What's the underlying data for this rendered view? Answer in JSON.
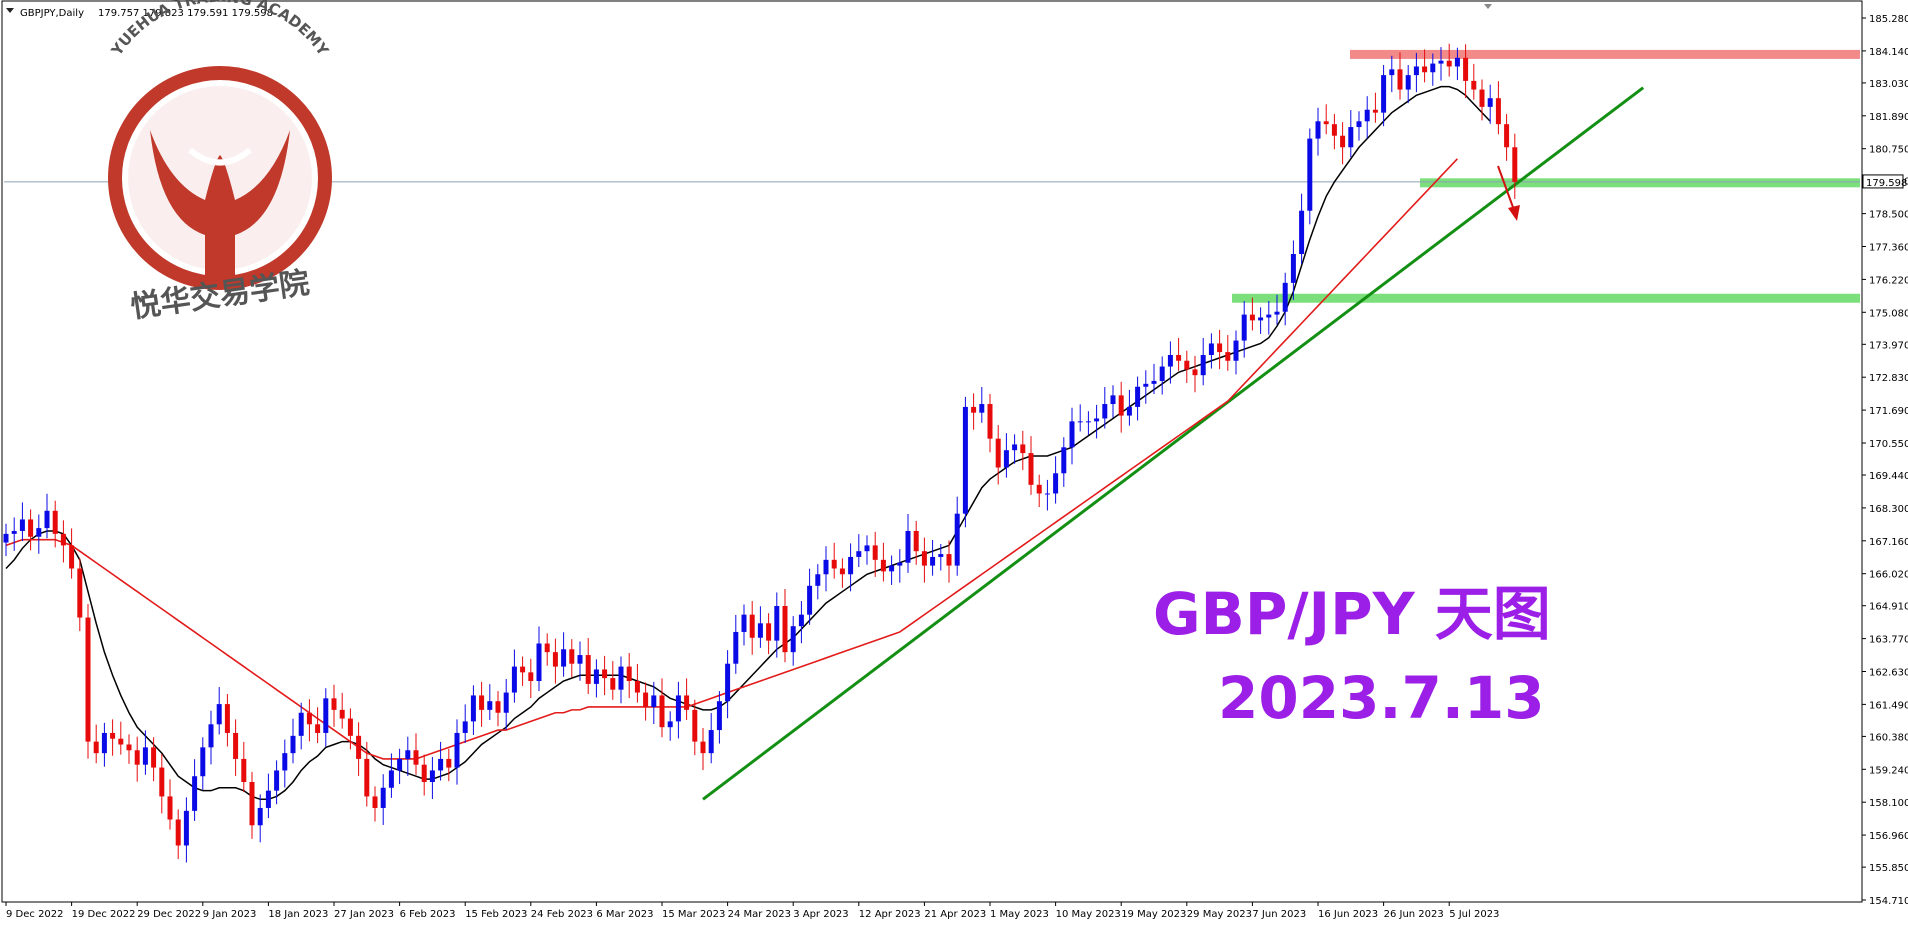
{
  "header": {
    "symbol": "GBPJPY,Daily",
    "ohlc": "179.757 179.823 179.591 179.598"
  },
  "logo": {
    "arc_text": "YUEHUA TRADING ACADEMY",
    "cn_text": "悦华交易学院",
    "ring_color": "#c0392b"
  },
  "annotation": {
    "title": "GBP/JPY 天图",
    "date": "2023.7.13",
    "color": "#9b1fe6"
  },
  "colors": {
    "bull": "#0a0ae6",
    "bear": "#e60a0a",
    "ma_fast": "#000000",
    "ma_slow": "#e31b1b",
    "trendline": "#139013",
    "support": "#7be07b",
    "resistance": "#f28a8a",
    "arrow": "#d31111",
    "price_line": "#8da0b8"
  },
  "chart_data": {
    "type": "candlestick",
    "price_axis": {
      "min": 154.71,
      "max": 185.28,
      "ticks": [
        "185.280",
        "184.140",
        "183.030",
        "181.890",
        "180.750",
        "179.640",
        "178.500",
        "177.360",
        "176.220",
        "175.080",
        "173.970",
        "172.830",
        "171.690",
        "170.550",
        "169.440",
        "168.300",
        "167.160",
        "166.020",
        "164.910",
        "163.770",
        "162.630",
        "161.490",
        "160.380",
        "159.240",
        "158.100",
        "156.960",
        "155.850",
        "154.710"
      ],
      "current_price": "179.598"
    },
    "date_axis": {
      "labels": [
        "9 Dec 2022",
        "19 Dec 2022",
        "29 Dec 2022",
        "9 Jan 2023",
        "18 Jan 2023",
        "27 Jan 2023",
        "6 Feb 2023",
        "15 Feb 2023",
        "24 Feb 2023",
        "6 Mar 2023",
        "15 Mar 2023",
        "24 Mar 2023",
        "3 Apr 2023",
        "12 Apr 2023",
        "21 Apr 2023",
        "1 May 2023",
        "10 May 2023",
        "19 May 2023",
        "29 May 2023",
        "7 Jun 2023",
        "16 Jun 2023",
        "26 Jun 2023",
        "5 Jul 2023"
      ],
      "label_bar_index": [
        0,
        8,
        16,
        24,
        32,
        40,
        48,
        56,
        64,
        72,
        80,
        88,
        96,
        104,
        112,
        120,
        128,
        136,
        144,
        152,
        160,
        168,
        176
      ]
    },
    "series": [
      {
        "name": "",
        "kind": "candles",
        "closes": [
          167.4,
          167.5,
          167.9,
          167.3,
          167.6,
          168.2,
          167.4,
          167.0,
          166.2,
          164.5,
          160.2,
          159.8,
          160.5,
          160.3,
          160.1,
          159.9,
          159.4,
          160.0,
          159.3,
          158.3,
          157.5,
          156.6,
          157.8,
          159.0,
          160.0,
          160.8,
          161.5,
          160.5,
          159.6,
          158.8,
          157.3,
          157.9,
          158.5,
          159.2,
          159.8,
          160.4,
          161.2,
          160.8,
          160.5,
          161.7,
          161.3,
          161.0,
          160.4,
          159.6,
          158.3,
          157.9,
          158.6,
          159.2,
          159.6,
          159.9,
          159.4,
          158.8,
          159.2,
          159.6,
          159.3,
          160.5,
          160.9,
          161.8,
          161.3,
          161.6,
          161.2,
          161.9,
          162.8,
          162.6,
          162.3,
          163.6,
          163.3,
          162.8,
          163.4,
          162.9,
          163.2,
          162.2,
          162.7,
          162.4,
          162.0,
          162.8,
          162.3,
          161.9,
          161.4,
          161.8,
          160.7,
          160.9,
          161.8,
          161.3,
          160.2,
          159.8,
          160.6,
          161.6,
          162.9,
          164.0,
          164.6,
          163.8,
          164.3,
          163.7,
          164.9,
          163.3,
          164.2,
          164.6,
          165.6,
          166.0,
          166.5,
          166.2,
          166.0,
          166.6,
          166.8,
          167.0,
          166.5,
          166.1,
          166.3,
          166.4,
          167.5,
          166.8,
          166.3,
          166.6,
          166.7,
          166.3,
          168.1,
          171.8,
          171.6,
          171.9,
          170.7,
          169.7,
          170.3,
          170.5,
          170.2,
          169.1,
          168.8,
          168.8,
          169.5,
          170.4,
          171.3,
          171.3,
          171.3,
          171.4,
          171.9,
          172.2,
          171.5,
          171.8,
          172.5,
          172.6,
          172.7,
          173.2,
          173.6,
          173.4,
          173.1,
          172.9,
          173.6,
          174.0,
          173.7,
          173.4,
          174.1,
          175.0,
          174.8,
          174.9,
          175.0,
          175.1,
          176.1,
          177.1,
          178.6,
          181.1,
          181.7,
          181.6,
          181.2,
          180.8,
          181.5,
          181.7,
          182.1,
          182.0,
          183.3,
          183.5,
          182.8,
          183.3,
          183.6,
          183.4,
          183.7,
          183.8,
          183.6,
          183.9,
          183.1,
          182.8,
          182.2,
          182.5,
          181.6,
          180.8,
          179.6
        ]
      },
      {
        "name": "",
        "kind": "ma_fast",
        "values": [
          166.2,
          166.5,
          166.9,
          167.2,
          167.4,
          167.5,
          167.5,
          167.4,
          167.0,
          166.5,
          165.4,
          164.3,
          163.3,
          162.5,
          161.8,
          161.2,
          160.7,
          160.4,
          160.1,
          159.8,
          159.4,
          159.0,
          158.8,
          158.6,
          158.5,
          158.5,
          158.6,
          158.6,
          158.6,
          158.5,
          158.3,
          158.2,
          158.2,
          158.3,
          158.5,
          158.8,
          159.2,
          159.5,
          159.7,
          160.0,
          160.1,
          160.2,
          160.2,
          160.1,
          159.9,
          159.6,
          159.4,
          159.3,
          159.2,
          159.1,
          159.0,
          158.9,
          158.9,
          159.0,
          159.1,
          159.3,
          159.5,
          159.8,
          160.1,
          160.3,
          160.5,
          160.7,
          161.0,
          161.2,
          161.4,
          161.7,
          161.9,
          162.1,
          162.3,
          162.4,
          162.5,
          162.5,
          162.5,
          162.5,
          162.5,
          162.5,
          162.4,
          162.3,
          162.2,
          162.1,
          161.9,
          161.7,
          161.6,
          161.5,
          161.4,
          161.3,
          161.3,
          161.4,
          161.6,
          161.9,
          162.2,
          162.5,
          162.8,
          163.1,
          163.4,
          163.6,
          163.8,
          164.1,
          164.4,
          164.7,
          165.0,
          165.2,
          165.4,
          165.6,
          165.8,
          166.0,
          166.1,
          166.2,
          166.3,
          166.4,
          166.5,
          166.6,
          166.7,
          166.8,
          166.9,
          167.0,
          167.5,
          168.0,
          168.5,
          169.0,
          169.3,
          169.5,
          169.7,
          169.9,
          170.0,
          170.1,
          170.1,
          170.1,
          170.2,
          170.3,
          170.4,
          170.6,
          170.8,
          171.0,
          171.2,
          171.4,
          171.6,
          171.8,
          172.0,
          172.2,
          172.4,
          172.6,
          172.8,
          173.0,
          173.1,
          173.2,
          173.3,
          173.4,
          173.5,
          173.6,
          173.7,
          173.8,
          173.9,
          174.0,
          174.2,
          174.6,
          175.1,
          175.8,
          176.7,
          177.6,
          178.4,
          179.1,
          179.6,
          180.0,
          180.4,
          180.8,
          181.1,
          181.4,
          181.7,
          182.0,
          182.2,
          182.4,
          182.6,
          182.7,
          182.8,
          182.9,
          182.9,
          182.8,
          182.6,
          182.3,
          182.0,
          181.7
        ]
      },
      {
        "name": "",
        "kind": "ma_slow",
        "values": [
          167.0,
          167.1,
          167.2,
          167.2,
          167.2,
          167.2,
          167.2,
          167.1,
          167.0,
          166.8,
          166.6,
          166.4,
          166.2,
          166.0,
          165.8,
          165.6,
          165.4,
          165.2,
          165.0,
          164.8,
          164.6,
          164.4,
          164.2,
          164.0,
          163.8,
          163.6,
          163.4,
          163.2,
          163.0,
          162.8,
          162.6,
          162.4,
          162.2,
          162.0,
          161.8,
          161.6,
          161.4,
          161.2,
          161.0,
          160.8,
          160.6,
          160.4,
          160.2,
          160.0,
          159.8,
          159.7,
          159.6,
          159.6,
          159.6,
          159.6,
          159.6,
          159.7,
          159.8,
          159.9,
          160.0,
          160.1,
          160.2,
          160.3,
          160.4,
          160.5,
          160.6,
          160.6,
          160.7,
          160.8,
          160.9,
          161.0,
          161.1,
          161.2,
          161.2,
          161.3,
          161.3,
          161.4,
          161.4,
          161.4,
          161.4,
          161.4,
          161.4,
          161.4,
          161.4,
          161.4,
          161.4,
          161.4,
          161.4,
          161.4,
          161.5,
          161.6,
          161.7,
          161.8,
          161.9,
          162.0,
          162.1,
          162.2,
          162.3,
          162.4,
          162.5,
          162.6,
          162.7,
          162.8,
          162.9,
          163.0,
          163.1,
          163.2,
          163.3,
          163.4,
          163.5,
          163.6,
          163.7,
          163.8,
          163.9,
          164.0,
          164.2,
          164.4,
          164.6,
          164.8,
          165.0,
          165.2,
          165.4,
          165.6,
          165.8,
          166.0,
          166.2,
          166.4,
          166.6,
          166.8,
          167.0,
          167.2,
          167.4,
          167.6,
          167.8,
          168.0,
          168.2,
          168.4,
          168.6,
          168.8,
          169.0,
          169.2,
          169.4,
          169.6,
          169.8,
          170.0,
          170.2,
          170.4,
          170.6,
          170.8,
          171.0,
          171.2,
          171.4,
          171.6,
          171.8,
          172.0,
          172.3,
          172.6,
          172.9,
          173.2,
          173.5,
          173.8,
          174.1,
          174.4,
          174.7,
          175.0,
          175.3,
          175.6,
          175.9,
          176.2,
          176.5,
          176.8,
          177.1,
          177.4,
          177.7,
          178.0,
          178.3,
          178.6,
          178.9,
          179.2,
          179.5,
          179.8,
          180.1,
          180.4
        ]
      }
    ],
    "levels": [
      {
        "kind": "resistance",
        "price": 184.0
      },
      {
        "kind": "support",
        "price": 179.55
      },
      {
        "kind": "support",
        "price": 175.55
      }
    ],
    "trendline": {
      "from": {
        "bar": 85,
        "price": 158.2
      },
      "to": {
        "bar": 196,
        "price": 182.0
      }
    },
    "grid": false
  }
}
